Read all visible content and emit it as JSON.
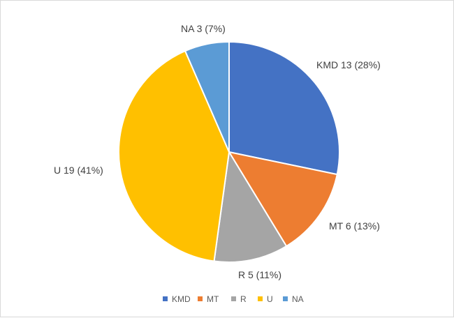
{
  "chart_data": {
    "type": "pie",
    "title": "",
    "categories": [
      "KMD",
      "MT",
      "R",
      "U",
      "NA"
    ],
    "values": [
      13,
      6,
      5,
      19,
      3
    ],
    "percentages": [
      28,
      13,
      11,
      41,
      7
    ],
    "data_labels": [
      "KMD 13 (28%)",
      "MT 6 (13%)",
      "R 5 (11%)",
      "U 19 (41%)",
      "NA 3 (7%)"
    ],
    "colors": [
      "#4472C4",
      "#ED7D31",
      "#A5A5A5",
      "#FFC000",
      "#5B9BD5"
    ],
    "start_angle": "12 o'clock",
    "direction": "clockwise",
    "legend": {
      "position": "bottom",
      "entries": [
        "KMD",
        "MT",
        "R",
        "U",
        "NA"
      ]
    }
  }
}
